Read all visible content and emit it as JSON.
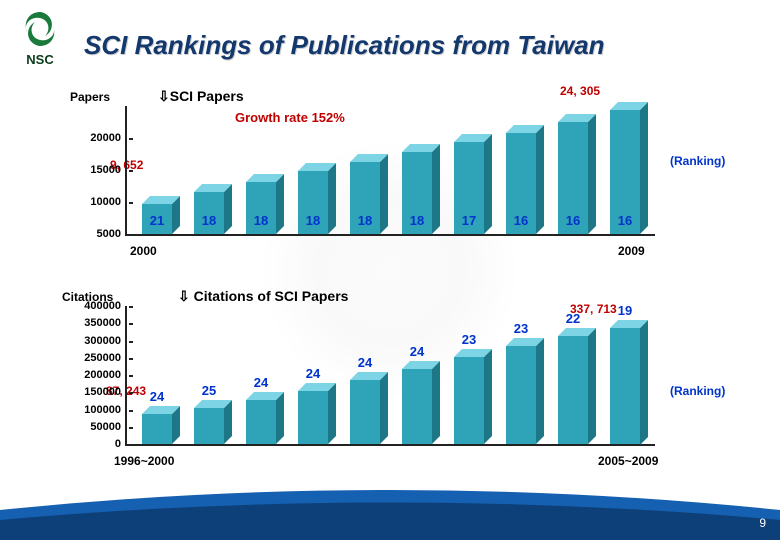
{
  "logo": {
    "text": "NSC"
  },
  "title": "SCI  Rankings of Publications from Taiwan",
  "page_number": "9",
  "chart1": {
    "type": "bar",
    "axis_label": "Papers",
    "section_label": "SCI Papers",
    "growth_label": "Growth rate 152%",
    "callout_low": "9, 652",
    "callout_high": "24, 305",
    "ranking_label": "(Ranking)",
    "start_year": "2000",
    "end_year": "2009",
    "ymin": 5000,
    "ymax": 25000,
    "yticks": [
      "5000",
      "10000",
      "15000",
      "20000"
    ],
    "bar_color_front": "#2fa3b8",
    "bar_color_top": "#7cd4e4",
    "bar_color_side": "#1e7787",
    "values": [
      9652,
      11500,
      13200,
      14800,
      16300,
      17800,
      19300,
      20800,
      22500,
      24305
    ],
    "ranks": [
      "21",
      "18",
      "18",
      "18",
      "18",
      "18",
      "17",
      "16",
      "16",
      "16"
    ]
  },
  "chart2": {
    "type": "bar",
    "axis_label": "Citations",
    "section_label": "Citations of SCI Papers",
    "callout_low": "87, 243",
    "callout_high": "337, 713",
    "ranking_label": "(Ranking)",
    "start_year": "1996~2000",
    "end_year": "2005~2009",
    "ymin": 0,
    "ymax": 400000,
    "yticks": [
      "0",
      "50000",
      "100000",
      "150000",
      "200000",
      "250000",
      "300000",
      "350000",
      "400000"
    ],
    "bar_color_front": "#2fa3b8",
    "bar_color_top": "#7cd4e4",
    "bar_color_side": "#1e7787",
    "values": [
      87243,
      105000,
      128000,
      155000,
      185000,
      218000,
      252000,
      285000,
      312000,
      337713
    ],
    "ranks": [
      "24",
      "25",
      "24",
      "24",
      "24",
      "24",
      "23",
      "23",
      "22",
      "19"
    ]
  }
}
